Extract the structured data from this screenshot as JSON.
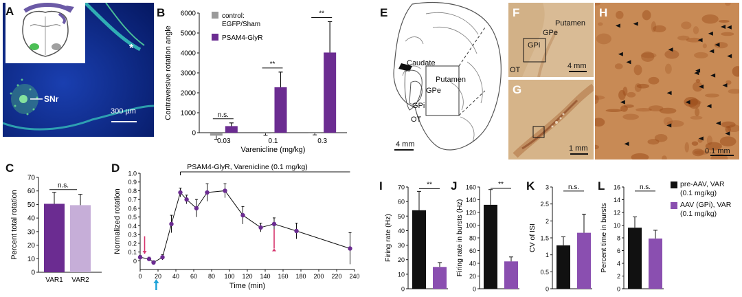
{
  "colors": {
    "purple": "#6b2c91",
    "purple_mid": "#8a4fb0",
    "purple_light": "#c6aed8",
    "grey": "#9a9a9a",
    "black": "#111111",
    "tissue": "#d7b488",
    "tissue_dark": "#9a4a18",
    "fluor_bg": "#0e2b8a",
    "fluor_green": "#58d07a"
  },
  "panels": {
    "A": {
      "label": "A",
      "region_label": "SNr",
      "scalebar": "300 µm",
      "star": "*"
    },
    "B": {
      "label": "B"
    },
    "C": {
      "label": "C"
    },
    "D": {
      "label": "D"
    },
    "E": {
      "label": "E",
      "caudate": "Caudate",
      "putamen": "Putamen",
      "gpe": "GPe",
      "gpi": "GPi",
      "ot": "OT",
      "scalebar": "4 mm"
    },
    "F": {
      "label": "F",
      "putamen": "Putamen",
      "gpe": "GPe",
      "gpi": "GPi",
      "ot": "OT",
      "scalebar": "4 mm"
    },
    "G": {
      "label": "G",
      "scalebar": "1 mm"
    },
    "H": {
      "label": "H",
      "scalebar": "0.1 mm"
    },
    "I": {
      "label": "I"
    },
    "J": {
      "label": "J"
    },
    "K": {
      "label": "K"
    },
    "L": {
      "label": "L"
    }
  },
  "legend_IL": {
    "pre": {
      "line1": "pre-AAV, VAR",
      "line2": "(0.1 mg/kg)"
    },
    "post": {
      "line1": "AAV (GPi), VAR",
      "line2": "(0.1 mg/kg)"
    }
  },
  "chart_data": [
    {
      "id": "B",
      "type": "bar",
      "ylabel": "Contraversive rotation angle",
      "xlabel": "Varenicline (mg/kg)",
      "categories": [
        "0.03",
        "0.1",
        "0.3"
      ],
      "ylim": [
        0,
        6000
      ],
      "yticks": [
        "0",
        "1000",
        "2000",
        "3000",
        "4000",
        "5000",
        "6000"
      ],
      "legend": [
        "control:",
        "EGFP/Sham",
        "PSAM4-GlyR"
      ],
      "series": [
        {
          "name": "control: EGFP/Sham",
          "color": "#9a9a9a",
          "values": [
            -150,
            -40,
            -30
          ],
          "errors": [
            180,
            90,
            80
          ]
        },
        {
          "name": "PSAM4-GlyR",
          "color": "#6b2c91",
          "values": [
            330,
            2280,
            4020
          ],
          "errors": [
            160,
            760,
            1550
          ]
        }
      ],
      "significance": [
        "n.s.",
        "**",
        "**"
      ]
    },
    {
      "id": "C",
      "type": "bar",
      "ylabel": "Percent total rotation",
      "categories": [
        "VAR1",
        "VAR2"
      ],
      "values": [
        50.5,
        49.5
      ],
      "errors": [
        8.5,
        8.0
      ],
      "colors": [
        "#6b2c91",
        "#c6aed8"
      ],
      "ylim": [
        0,
        70
      ],
      "yticks": [
        "0",
        "10",
        "20",
        "30",
        "40",
        "50",
        "60",
        "70"
      ],
      "significance": "n.s."
    },
    {
      "id": "D",
      "type": "line",
      "title": "PSAM4-GlyR, Varenicline (0.1 mg/kg)",
      "ylabel": "Normalized rotation",
      "xlabel": "Time (min)",
      "x": [
        0,
        10,
        15,
        25,
        35,
        45,
        52,
        63,
        75,
        95,
        115,
        135,
        150,
        175,
        235
      ],
      "y": [
        0.04,
        0.02,
        -0.02,
        0.04,
        0.42,
        0.78,
        0.7,
        0.6,
        0.78,
        0.8,
        0.52,
        0.38,
        0.42,
        0.34,
        0.14
      ],
      "errors": [
        0.02,
        0.02,
        0.02,
        0.03,
        0.1,
        0.05,
        0.05,
        0.1,
        0.1,
        0.08,
        0.1,
        0.05,
        0.07,
        0.09,
        0.18
      ],
      "xlim": [
        0,
        240
      ],
      "ylim": [
        -0.1,
        1.0
      ],
      "xticks": [
        "0",
        "20",
        "40",
        "60",
        "80",
        "100",
        "120",
        "140",
        "160",
        "180",
        "200",
        "220",
        "240"
      ],
      "yticks": [
        "0",
        "0.1",
        "0.2",
        "0.3",
        "0.4",
        "0.5",
        "0.6",
        "0.7",
        "0.8",
        "0.9",
        "1.0"
      ],
      "arrows": [
        {
          "x": 5,
          "color": "#d6336c"
        },
        {
          "x": 18,
          "color": "#1fa3d8"
        },
        {
          "x": 150,
          "color": "#d6336c"
        }
      ]
    },
    {
      "id": "I",
      "type": "bar",
      "ylabel": "Firing rate (Hz)",
      "values": [
        54,
        15
      ],
      "errors": [
        13,
        3
      ],
      "colors": [
        "#111111",
        "#8a4fb0"
      ],
      "ylim": [
        0,
        70
      ],
      "yticks": [
        "0",
        "10",
        "20",
        "30",
        "40",
        "50",
        "60",
        "70"
      ],
      "significance": "**"
    },
    {
      "id": "J",
      "type": "bar",
      "ylabel": "Firing rate in bursts (Hz)",
      "values": [
        132,
        43
      ],
      "errors": [
        24,
        7
      ],
      "colors": [
        "#111111",
        "#8a4fb0"
      ],
      "ylim": [
        0,
        160
      ],
      "yticks": [
        "0",
        "20",
        "40",
        "60",
        "80",
        "100",
        "120",
        "140",
        "160"
      ],
      "significance": "**"
    },
    {
      "id": "K",
      "type": "bar",
      "ylabel": "CV of ISI",
      "values": [
        1.28,
        1.65
      ],
      "errors": [
        0.25,
        0.55
      ],
      "colors": [
        "#111111",
        "#8a4fb0"
      ],
      "ylim": [
        0,
        3
      ],
      "yticks": [
        "0",
        "0.5",
        "1",
        "1.5",
        "2",
        "2.5",
        "3"
      ],
      "significance": "n.s."
    },
    {
      "id": "L",
      "type": "bar",
      "ylabel": "Percent time in bursts",
      "values": [
        9.6,
        7.9
      ],
      "errors": [
        1.7,
        1.3
      ],
      "colors": [
        "#111111",
        "#8a4fb0"
      ],
      "ylim": [
        0,
        16
      ],
      "yticks": [
        "0",
        "2",
        "4",
        "6",
        "8",
        "10",
        "12",
        "14",
        "16"
      ],
      "significance": "n.s."
    }
  ]
}
